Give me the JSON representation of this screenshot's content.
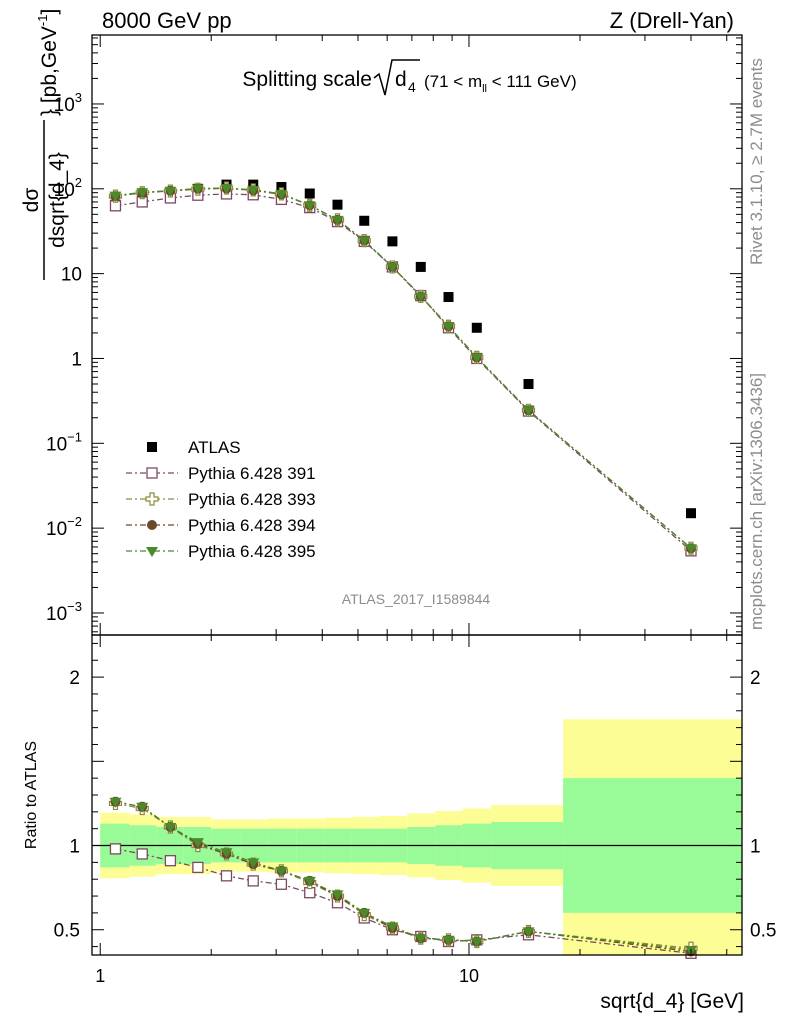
{
  "header": {
    "energy_label": "8000 GeV pp",
    "process_label": "Z (Drell-Yan)"
  },
  "side": {
    "rivet_label": "Rivet 3.1.10, ≥ 2.7M events",
    "mcplots_label": "mcplots.cern.ch [arXiv:1306.3436]"
  },
  "colors": {
    "atlas": "#000000",
    "py391": "#7a4a62",
    "py393": "#8f8a3a",
    "py394": "#6b4a2a",
    "py395": "#4a8a2a",
    "band_inner": "#98fb98",
    "band_outer": "#fdfd96"
  },
  "chart_data": [
    {
      "type": "scatter",
      "title_main": "Splitting scale",
      "title_sym": "d",
      "title_sub": "4",
      "title_range": "(71 < m",
      "title_range_sub": "ll",
      "title_range_end": " < 111 GeV)",
      "ylabel": "dσ/dsqrt{d_4} [pb,GeV^-1]",
      "ylabel_num": "dσ",
      "ylabel_den": "dsqrt{d_4}",
      "ylabel_unit": "} [pb,GeV",
      "ylabel_unit_sup": "-1",
      "ylabel_unit_end": "]",
      "xscale": "log",
      "yscale": "log",
      "xlim": [
        0.95,
        55
      ],
      "ylim": [
        0.00055,
        6500
      ],
      "y_tick_labels": [
        "10^-3",
        "10^-2",
        "10^-1",
        "1",
        "10",
        "10^2",
        "10^3"
      ],
      "analysis_label": "ATLAS_2017_I1589844",
      "legend_position": "left",
      "x": [
        1.1,
        1.3,
        1.55,
        1.84,
        2.2,
        2.6,
        3.1,
        3.7,
        4.4,
        5.2,
        6.2,
        7.4,
        8.8,
        10.5,
        14.5,
        40
      ],
      "series": [
        {
          "name": "ATLAS",
          "key": "atlas",
          "marker": "square-filled",
          "values": [
            65,
            73,
            85,
            100,
            112,
            112,
            105,
            88,
            65,
            42,
            24,
            12,
            5.3,
            2.3,
            0.5,
            0.015
          ]
        },
        {
          "name": "Pythia 6.428 391",
          "key": "py391",
          "marker": "square-open",
          "values": [
            63,
            70,
            78,
            84,
            87,
            85,
            75,
            60,
            41,
            24,
            12,
            5.5,
            2.3,
            1.0,
            0.24,
            0.0054
          ]
        },
        {
          "name": "Pythia 6.428 393",
          "key": "py393",
          "marker": "cross-open",
          "values": [
            82,
            90,
            94,
            99,
            102,
            97,
            87,
            64,
            43,
            24.5,
            12,
            5.4,
            2.4,
            1.03,
            0.245,
            0.0058
          ]
        },
        {
          "name": "Pythia 6.428 394",
          "key": "py394",
          "marker": "circle-filled",
          "values": [
            82,
            90,
            95,
            100,
            101,
            96,
            86,
            64,
            43,
            24.5,
            12,
            5.4,
            2.4,
            1.03,
            0.245,
            0.0058
          ]
        },
        {
          "name": "Pythia 6.428 395",
          "key": "py395",
          "marker": "triangle-down",
          "values": [
            83,
            91,
            95,
            101,
            102,
            97,
            87,
            64,
            43,
            24.5,
            12,
            5.4,
            2.4,
            1.03,
            0.245,
            0.0058
          ]
        }
      ]
    },
    {
      "type": "scatter",
      "ylabel": "Ratio to ATLAS",
      "xlabel": "sqrt{d_4} [GeV]",
      "xscale": "log",
      "xlim": [
        0.95,
        55
      ],
      "ylim": [
        0.35,
        2.25
      ],
      "x_tick_labels": [
        "1",
        "10"
      ],
      "y_tick_labels": [
        "0.5",
        "1",
        "2"
      ],
      "x": [
        1.1,
        1.3,
        1.55,
        1.84,
        2.2,
        2.6,
        3.1,
        3.7,
        4.4,
        5.2,
        6.2,
        7.4,
        8.8,
        10.5,
        14.5,
        40
      ],
      "bands": {
        "edges": [
          1.0,
          1.2,
          1.42,
          1.68,
          2.0,
          2.4,
          2.85,
          3.4,
          4.05,
          4.8,
          5.7,
          6.8,
          8.1,
          9.6,
          11.5,
          18,
          55
        ],
        "inner": [
          0.13,
          0.12,
          0.11,
          0.11,
          0.1,
          0.1,
          0.1,
          0.1,
          0.1,
          0.1,
          0.1,
          0.11,
          0.12,
          0.13,
          0.14,
          0.4
        ],
        "outer": [
          0.13,
          0.12,
          0.11,
          0.11,
          0.1,
          0.1,
          0.1,
          0.1,
          0.1,
          0.1,
          0.1,
          0.11,
          0.12,
          0.13,
          0.14,
          0.4
        ],
        "outer_extra": [
          0.13,
          0.13,
          0.12,
          0.12,
          0.11,
          0.11,
          0.12,
          0.12,
          0.13,
          0.14,
          0.15,
          0.16,
          0.17,
          0.18,
          0.2,
          0.7
        ]
      },
      "series": [
        {
          "name": "Pythia 6.428 391",
          "key": "py391",
          "marker": "square-open",
          "values": [
            0.98,
            0.95,
            0.91,
            0.87,
            0.82,
            0.79,
            0.77,
            0.72,
            0.66,
            0.57,
            0.5,
            0.46,
            0.43,
            0.44,
            0.47,
            0.36
          ]
        },
        {
          "name": "Pythia 6.428 393",
          "key": "py393",
          "marker": "cross-open",
          "values": [
            1.25,
            1.22,
            1.11,
            1.0,
            0.95,
            0.89,
            0.85,
            0.78,
            0.7,
            0.59,
            0.51,
            0.45,
            0.44,
            0.43,
            0.49,
            0.39
          ]
        },
        {
          "name": "Pythia 6.428 394",
          "key": "py394",
          "marker": "circle-filled",
          "values": [
            1.26,
            1.23,
            1.11,
            1.01,
            0.95,
            0.89,
            0.85,
            0.79,
            0.7,
            0.6,
            0.51,
            0.45,
            0.44,
            0.43,
            0.49,
            0.37
          ]
        },
        {
          "name": "Pythia 6.428 395",
          "key": "py395",
          "marker": "triangle-down",
          "values": [
            1.26,
            1.23,
            1.11,
            1.02,
            0.96,
            0.9,
            0.85,
            0.79,
            0.71,
            0.6,
            0.52,
            0.45,
            0.44,
            0.43,
            0.49,
            0.38
          ]
        }
      ]
    }
  ]
}
